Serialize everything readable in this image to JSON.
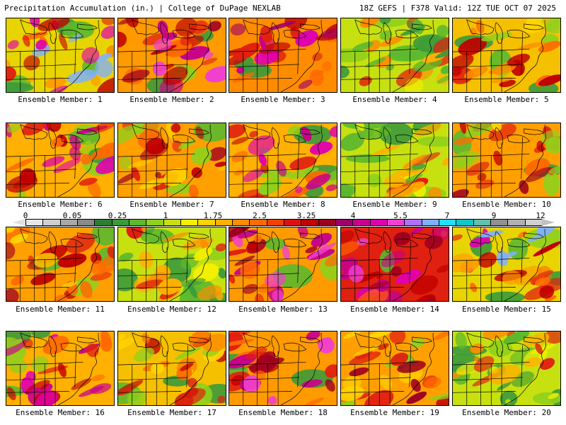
{
  "header": {
    "left": "Precipitation Accumulation (in.) | College of DuPage NEXLAB",
    "right": "18Z GEFS | F378 Valid: 12Z TUE OCT 07 2025"
  },
  "colorbar": {
    "labels": [
      "0",
      "0.05",
      "0.25",
      "1",
      "1.75",
      "2.5",
      "3.25",
      "4",
      "5.5",
      "7",
      "9",
      "12"
    ],
    "colors": [
      "#e8e8e8",
      "#cfcfcf",
      "#a8a8a8",
      "#8a8a8a",
      "#2e7d32",
      "#3c9a3a",
      "#5cb82d",
      "#8fd01c",
      "#c7e010",
      "#f5f000",
      "#ffd400",
      "#ffb000",
      "#ff8c00",
      "#ff6a00",
      "#f04000",
      "#e01010",
      "#c00000",
      "#a00020",
      "#a0006a",
      "#c8008c",
      "#e000b0",
      "#f040d0",
      "#b070ff",
      "#7fb0ff",
      "#20e0ff",
      "#10c8c8",
      "#60c0b0",
      "#909090",
      "#b0b0b0",
      "#d0d0d0"
    ]
  },
  "panels": [
    {
      "label": "Ensemble Member: 1",
      "theme": "moderate-east"
    },
    {
      "label": "Ensemble Member: 2",
      "theme": "wet-east"
    },
    {
      "label": "Ensemble Member: 3",
      "theme": "wet-north"
    },
    {
      "label": "Ensemble Member: 4",
      "theme": "dry-green"
    },
    {
      "label": "Ensemble Member: 5",
      "theme": "moderate"
    },
    {
      "label": "Ensemble Member: 6",
      "theme": "wet-central"
    },
    {
      "label": "Ensemble Member: 7",
      "theme": "wet"
    },
    {
      "label": "Ensemble Member: 8",
      "theme": "wet-central"
    },
    {
      "label": "Ensemble Member: 9",
      "theme": "dry-green"
    },
    {
      "label": "Ensemble Member: 10",
      "theme": "wet"
    },
    {
      "label": "Ensemble Member: 11",
      "theme": "wet"
    },
    {
      "label": "Ensemble Member: 12",
      "theme": "dry-green"
    },
    {
      "label": "Ensemble Member: 13",
      "theme": "wet-east"
    },
    {
      "label": "Ensemble Member: 14",
      "theme": "very-wet"
    },
    {
      "label": "Ensemble Member: 15",
      "theme": "moderate-east"
    },
    {
      "label": "Ensemble Member: 16",
      "theme": "wet-central"
    },
    {
      "label": "Ensemble Member: 17",
      "theme": "moderate"
    },
    {
      "label": "Ensemble Member: 18",
      "theme": "wet-east"
    },
    {
      "label": "Ensemble Member: 19",
      "theme": "wet"
    },
    {
      "label": "Ensemble Member: 20",
      "theme": "dry-green"
    }
  ]
}
